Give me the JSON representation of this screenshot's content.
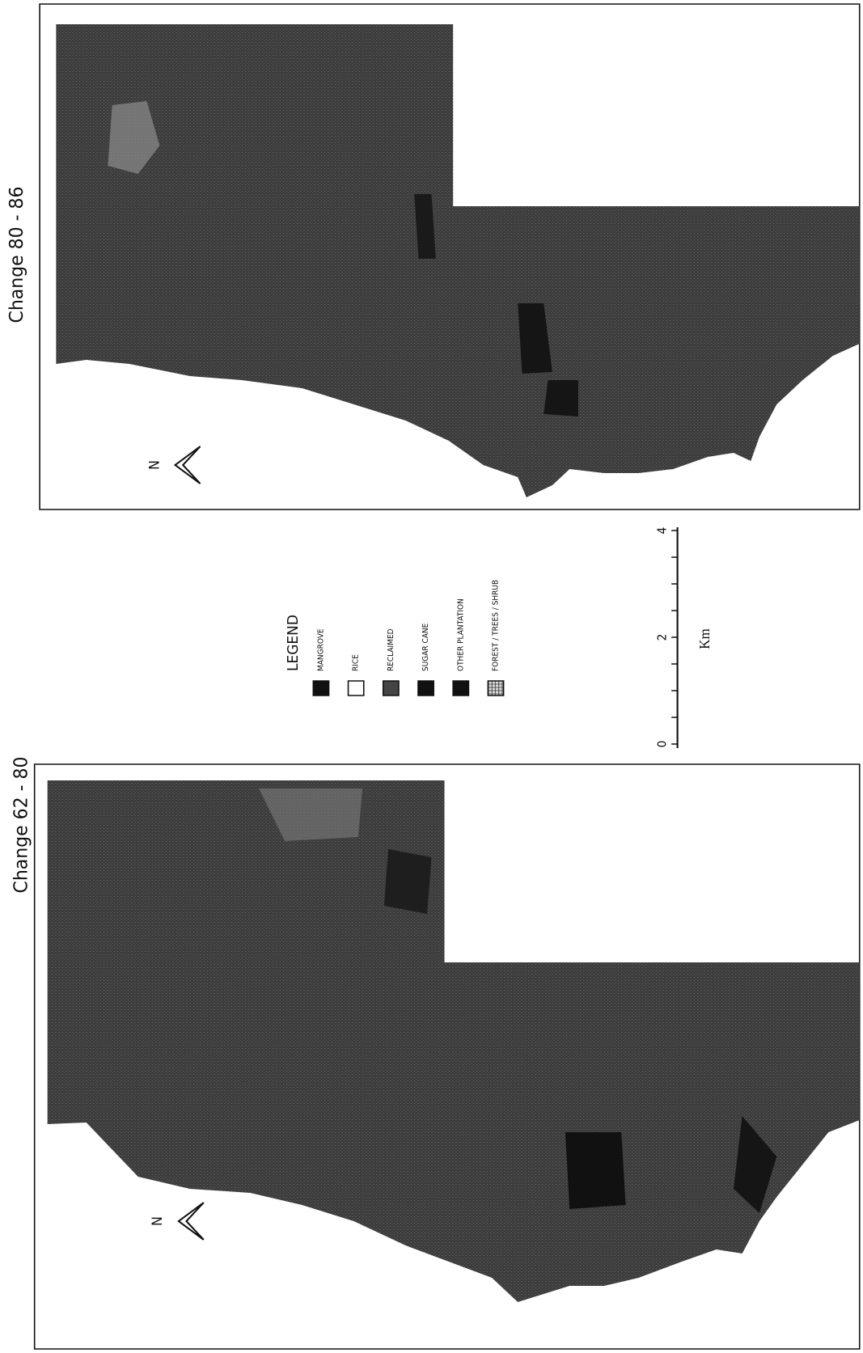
{
  "maps": [
    {
      "title": "Change 80 - 86",
      "north": "N"
    },
    {
      "title": "Change 62 - 80",
      "north": "N"
    }
  ],
  "legend": {
    "title": "LEGEND",
    "items": [
      "MANGROVE",
      "RICE",
      "RECLAIMED",
      "SUGAR CANE",
      "OTHER PLANTATION",
      "FOREST / TREES / SHRUB"
    ]
  },
  "scale": {
    "labels": [
      "0",
      "2",
      "4"
    ],
    "unit": "Km"
  }
}
